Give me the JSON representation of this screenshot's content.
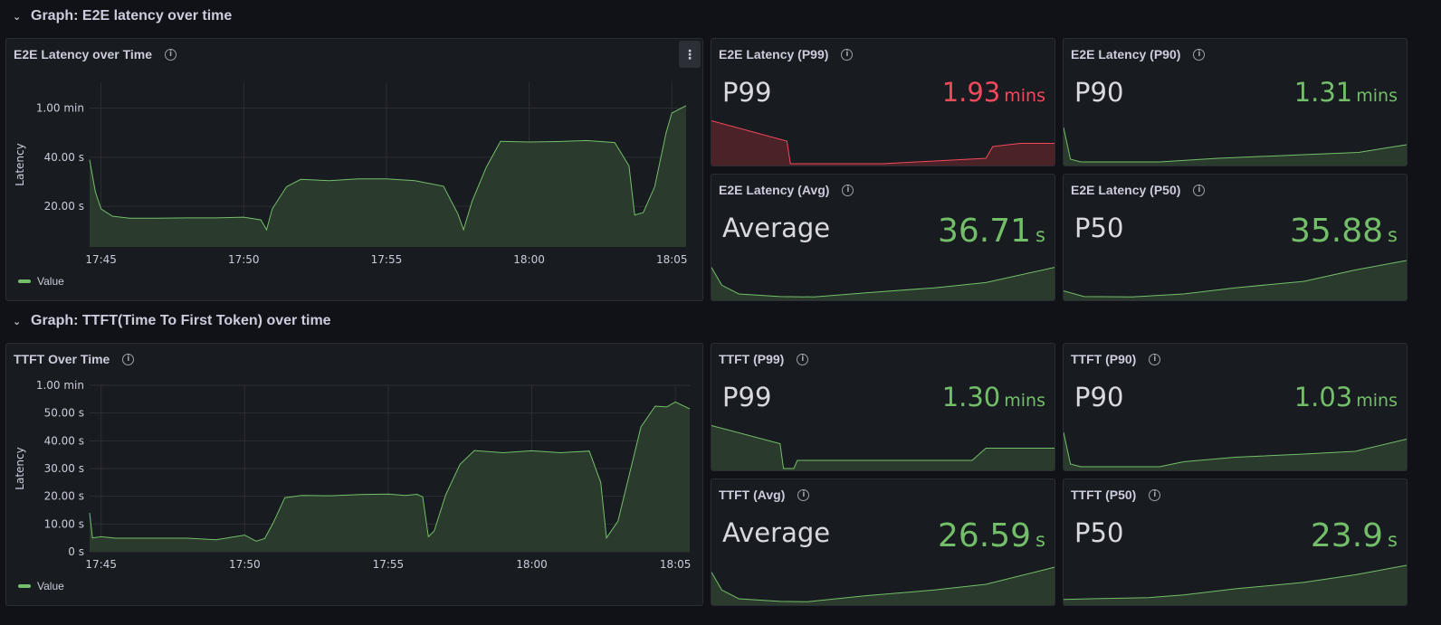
{
  "colors": {
    "green": "#73bf69",
    "red": "#f2495c",
    "green_fill": "#2a3a2c",
    "red_fill": "#4a2227",
    "grid": "#2c2e34"
  },
  "sections": [
    {
      "title": "Graph: E2E latency over time",
      "chevron_icon": "chevron-down-icon",
      "main_panel": {
        "title": "E2E Latency over Time",
        "ylabel": "Latency",
        "legend": "Value"
      },
      "stats": [
        {
          "title": "E2E Latency (P99)",
          "name": "P99",
          "value": "1.93",
          "unit": "mins",
          "status": "red"
        },
        {
          "title": "E2E Latency (P90)",
          "name": "P90",
          "value": "1.31",
          "unit": "mins",
          "status": "green"
        },
        {
          "title": "E2E Latency (Avg)",
          "name": "Average",
          "value": "36.71",
          "unit": "s",
          "status": "green"
        },
        {
          "title": "E2E Latency (P50)",
          "name": "P50",
          "value": "35.88",
          "unit": "s",
          "status": "green"
        }
      ]
    },
    {
      "title": "Graph: TTFT(Time To First Token) over time",
      "chevron_icon": "chevron-down-icon",
      "main_panel": {
        "title": "TTFT Over Time",
        "ylabel": "Latency",
        "legend": "Value"
      },
      "stats": [
        {
          "title": "TTFT (P99)",
          "name": "P99",
          "value": "1.30",
          "unit": "mins",
          "status": "green"
        },
        {
          "title": "TTFT (P90)",
          "name": "P90",
          "value": "1.03",
          "unit": "mins",
          "status": "green"
        },
        {
          "title": "TTFT (Avg)",
          "name": "Average",
          "value": "26.59",
          "unit": "s",
          "status": "green"
        },
        {
          "title": "TTFT (P50)",
          "name": "P50",
          "value": "23.9",
          "unit": "s",
          "status": "green"
        }
      ]
    }
  ],
  "chart_data": [
    {
      "type": "area",
      "title": "E2E Latency over Time",
      "xlabel": "",
      "ylabel": "Latency",
      "x_ticks": [
        "17:45",
        "17:50",
        "17:55",
        "18:00",
        "18:05"
      ],
      "y_ticks": [
        "20.00 s",
        "40.00 s",
        "1.00 min"
      ],
      "y_tick_values": [
        20,
        40,
        60
      ],
      "ylim": [
        3.5,
        70.5
      ],
      "x_unit": "minutes after 17:45",
      "xlim": [
        -0.4,
        20.5
      ],
      "series": [
        {
          "name": "Value",
          "x": [
            -0.4,
            -0.2,
            0,
            0.4,
            1,
            2,
            3,
            4,
            5,
            5.6,
            5.8,
            6,
            6.5,
            7,
            8,
            9,
            10,
            11,
            12,
            12.5,
            12.7,
            13,
            13.5,
            14,
            15,
            16,
            17,
            18,
            18.5,
            18.7,
            19,
            19.4,
            19.8,
            20,
            20.5
          ],
          "y": [
            39,
            26,
            19,
            16,
            15.2,
            15.2,
            15.3,
            15.3,
            15.6,
            14.5,
            10.5,
            19,
            28,
            31,
            30.5,
            31.2,
            31.2,
            30.5,
            28.2,
            17,
            10.5,
            22,
            36,
            46.5,
            46.2,
            46.4,
            46.8,
            46,
            36.5,
            16.5,
            17.5,
            28,
            50,
            58,
            61
          ]
        }
      ]
    },
    {
      "type": "area",
      "title": "TTFT Over Time",
      "xlabel": "",
      "ylabel": "Latency",
      "x_ticks": [
        "17:45",
        "17:50",
        "17:55",
        "18:00",
        "18:05"
      ],
      "y_ticks": [
        "0 s",
        "10.00 s",
        "20.00 s",
        "30.00 s",
        "40.00 s",
        "50.00 s",
        "1.00 min"
      ],
      "y_tick_values": [
        0,
        10,
        20,
        30,
        40,
        50,
        60
      ],
      "ylim": [
        0,
        60
      ],
      "x_unit": "minutes after 17:45",
      "xlim": [
        -0.4,
        20.5
      ],
      "series": [
        {
          "name": "Value",
          "x": [
            -0.4,
            -0.3,
            0,
            0.5,
            1,
            2,
            3,
            4,
            5,
            5.4,
            5.7,
            6,
            6.4,
            7,
            8,
            9,
            10,
            10.6,
            11,
            11.2,
            11.4,
            11.6,
            12,
            12.5,
            13,
            14,
            15,
            16,
            17,
            17.4,
            17.6,
            18,
            18.4,
            18.8,
            19.3,
            19.7,
            20,
            20.5
          ],
          "y": [
            14,
            5,
            5.4,
            4.9,
            4.9,
            4.9,
            4.9,
            4.3,
            6,
            3.8,
            4.8,
            10.5,
            19.5,
            20.3,
            20.2,
            20.6,
            20.8,
            20.3,
            20.7,
            19.8,
            5.4,
            7.5,
            20.5,
            31.5,
            36.5,
            35.7,
            36.4,
            35.7,
            36.3,
            25,
            5,
            11,
            28,
            45,
            52.5,
            52.2,
            54,
            51.5
          ]
        }
      ]
    }
  ]
}
